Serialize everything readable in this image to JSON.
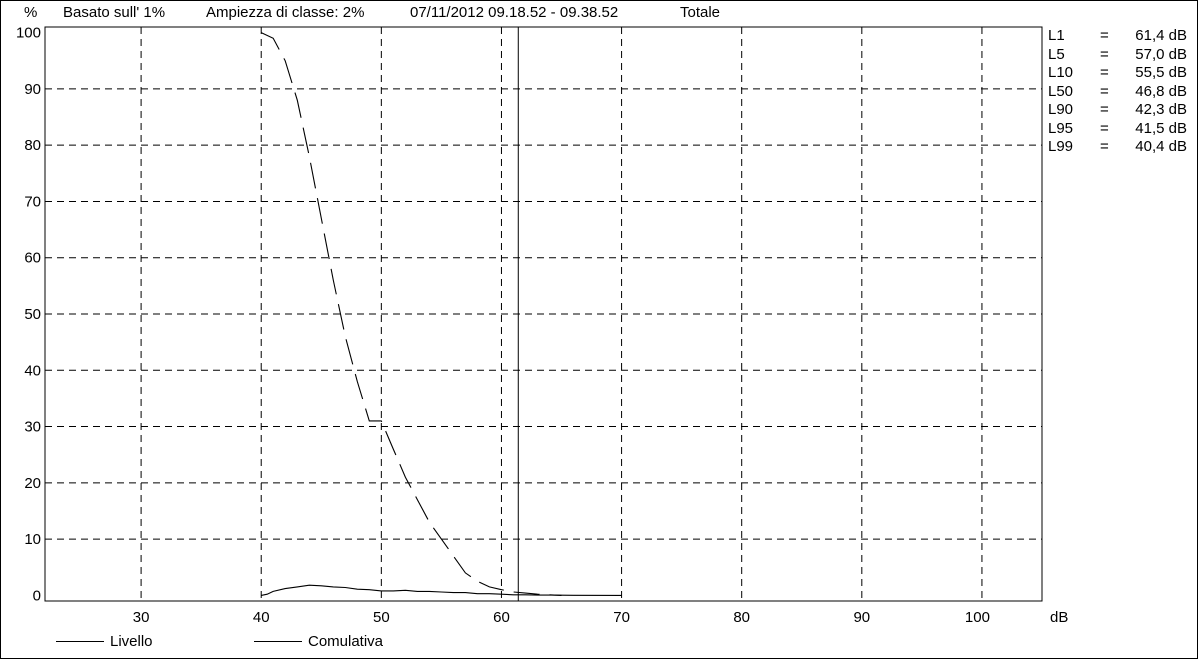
{
  "header": {
    "y_unit": "%",
    "basis": "Basato sull' 1%",
    "class_width": "Ampiezza di classe: 2%",
    "period": "07/11/2012 09.18.52 - 09.38.52",
    "scope": "Totale"
  },
  "stats": [
    {
      "label": "L1",
      "eq": "=",
      "value": "61,4 dB"
    },
    {
      "label": "L5",
      "eq": "=",
      "value": "57,0 dB"
    },
    {
      "label": "L10",
      "eq": "=",
      "value": "55,5 dB"
    },
    {
      "label": "L50",
      "eq": "=",
      "value": "46,8 dB"
    },
    {
      "label": "L90",
      "eq": "=",
      "value": "42,3 dB"
    },
    {
      "label": "L95",
      "eq": "=",
      "value": "41,5 dB"
    },
    {
      "label": "L99",
      "eq": "=",
      "value": "40,4 dB"
    }
  ],
  "legend": {
    "livello": "Livello",
    "comulativa": "Comulativa"
  },
  "chart_data": {
    "type": "line",
    "xlabel": "dB",
    "ylabel": "%",
    "xlim": [
      22,
      105
    ],
    "ylim": [
      -1,
      101
    ],
    "grid": true,
    "x_ticks": [
      "30",
      "40",
      "50",
      "60",
      "70",
      "80",
      "90",
      "100"
    ],
    "x_tick_values": [
      30,
      40,
      50,
      60,
      70,
      80,
      90,
      100
    ],
    "y_ticks": [
      "0",
      "10",
      "20",
      "30",
      "40",
      "50",
      "60",
      "70",
      "80",
      "90",
      "100"
    ],
    "y_tick_values": [
      0,
      10,
      20,
      30,
      40,
      50,
      60,
      70,
      80,
      90,
      100
    ],
    "marker_x": 61.4,
    "series": [
      {
        "name": "Livello",
        "style": "solid",
        "x": [
          40,
          40.5,
          41,
          42,
          43,
          44,
          45,
          46,
          47,
          48,
          49,
          50,
          51,
          52,
          53,
          54,
          55,
          56,
          57,
          58,
          59,
          60,
          61,
          62,
          63,
          64,
          66,
          70
        ],
        "y": [
          0,
          0.2,
          0.7,
          1.2,
          1.5,
          1.8,
          1.7,
          1.5,
          1.4,
          1.1,
          1.0,
          0.8,
          0.8,
          0.9,
          0.7,
          0.7,
          0.6,
          0.5,
          0.5,
          0.3,
          0.3,
          0.2,
          0.1,
          0.1,
          0.05,
          0.05,
          0.02,
          0
        ]
      },
      {
        "name": "Comulativa",
        "style": "dashed",
        "x": [
          40,
          41,
          42,
          43,
          44,
          45,
          46,
          47,
          48,
          49,
          50,
          51,
          52,
          53,
          54,
          55,
          56,
          57,
          58,
          59,
          60,
          61,
          62,
          63,
          64,
          65
        ],
        "y": [
          100,
          99,
          95,
          88,
          78,
          67,
          56,
          46,
          38,
          31,
          31,
          26,
          21,
          17,
          13,
          10,
          7,
          4,
          2.5,
          1.5,
          1,
          0.6,
          0.4,
          0.2,
          0.1,
          0
        ]
      }
    ]
  }
}
